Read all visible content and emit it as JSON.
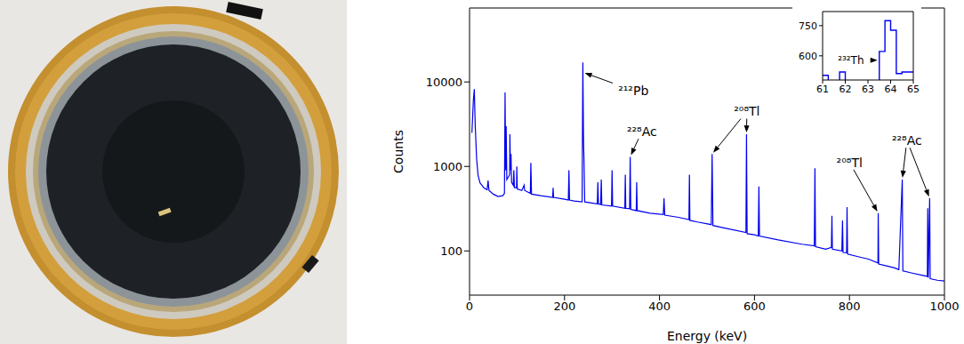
{
  "chart_data": [
    {
      "type": "line",
      "x_label": "Energy (keV)",
      "y_label": "Counts",
      "color": "#0000ee",
      "log": "y",
      "xlim": [
        0,
        1000
      ],
      "ylim": [
        30,
        75000
      ],
      "xticks": [
        0,
        200,
        400,
        600,
        800,
        1000
      ],
      "yticks": [
        100,
        1000,
        10000
      ],
      "x": [
        5,
        8,
        10,
        12,
        15,
        18,
        22,
        26,
        30,
        37,
        39,
        41,
        50,
        60,
        70,
        73.5,
        74.8,
        76,
        77.1,
        78.5,
        84.5,
        85,
        86,
        87.3,
        88.5,
        92,
        93.3,
        94.5,
        99,
        99.5,
        100.5,
        110,
        115,
        116,
        128,
        129.1,
        130.5,
        150,
        175,
        176,
        177,
        200,
        208,
        209.3,
        210.5,
        220,
        237,
        238.6,
        240,
        241,
        242.5,
        269,
        270.2,
        271.5,
        276,
        277.4,
        278.5,
        299,
        300.1,
        301.3,
        327,
        328,
        329,
        337,
        338.3,
        339.5,
        351,
        352,
        353,
        380,
        408,
        409.5,
        411,
        440,
        462,
        463,
        464,
        480,
        509,
        510.8,
        512.5,
        540,
        582,
        583.2,
        584.5,
        600,
        608,
        609.3,
        610.5,
        650,
        700,
        726,
        727.3,
        728.5,
        750,
        762,
        763.1,
        764,
        784,
        785.4,
        786.5,
        794,
        794.9,
        796,
        820,
        840,
        860,
        860.6,
        861.6,
        880,
        895,
        904,
        911.2,
        912.5,
        930,
        964,
        964.8,
        966,
        968.9,
        970,
        985,
        1000
      ],
      "values": [
        2500,
        6000,
        8200,
        3000,
        1200,
        780,
        640,
        600,
        560,
        530,
        680,
        520,
        470,
        440,
        450,
        480,
        7500,
        900,
        3000,
        700,
        800,
        2400,
        900,
        1400,
        650,
        600,
        900,
        560,
        560,
        1000,
        540,
        520,
        600,
        520,
        480,
        1100,
        470,
        450,
        430,
        560,
        430,
        410,
        400,
        900,
        400,
        390,
        380,
        17000,
        2000,
        1200,
        380,
        360,
        650,
        360,
        355,
        700,
        350,
        340,
        900,
        340,
        320,
        800,
        320,
        315,
        1300,
        310,
        300,
        650,
        300,
        280,
        270,
        420,
        265,
        250,
        235,
        800,
        230,
        220,
        205,
        1400,
        200,
        185,
        165,
        2400,
        160,
        155,
        150,
        580,
        150,
        135,
        120,
        115,
        950,
        112,
        105,
        110,
        260,
        105,
        100,
        230,
        96,
        95,
        330,
        92,
        85,
        80,
        72,
        280,
        70,
        66,
        63,
        60,
        700,
        58,
        55,
        50,
        320,
        48,
        420,
        47,
        45,
        44
      ],
      "annotations": [
        {
          "text": "²¹²Pb",
          "x": 345,
          "y": 7900,
          "targets": [
            [
              239,
              13000
            ]
          ]
        },
        {
          "text": "²²⁸Ac",
          "x": 363,
          "y": 2600,
          "targets": [
            [
              338.3,
              1300
            ]
          ]
        },
        {
          "text": "²⁰⁸Tl",
          "x": 584,
          "y": 4500,
          "targets": [
            [
              510.8,
              1400
            ],
            [
              583.2,
              2400
            ]
          ]
        },
        {
          "text": "²⁰⁸Tl",
          "x": 800,
          "y": 1120,
          "targets": [
            [
              860.6,
              280
            ]
          ]
        },
        {
          "text": "²²⁸Ac",
          "x": 921,
          "y": 2040,
          "targets": [
            [
              911.2,
              700
            ],
            [
              968.9,
              420
            ]
          ]
        }
      ]
    },
    {
      "type": "histogram",
      "color": "#0000ee",
      "bins": [
        61,
        61.25,
        61.5,
        61.75,
        62,
        62.25,
        62.5,
        62.75,
        63,
        63.25,
        63.5,
        63.75,
        64,
        64.25,
        64.5,
        64.75,
        65
      ],
      "counts": [
        503,
        470,
        470,
        520,
        470,
        470,
        470,
        470,
        470,
        470,
        622,
        775,
        727,
        512,
        520,
        520
      ],
      "xlim": [
        61,
        65
      ],
      "ylim": [
        480,
        820
      ],
      "xticks": [
        61,
        62,
        63,
        64,
        65
      ],
      "yticks": [
        600,
        750
      ],
      "annotations": [
        {
          "text": "²³²Th",
          "x": 62.25,
          "y": 578,
          "targets": [
            [
              63.5,
              578
            ]
          ]
        }
      ]
    }
  ]
}
